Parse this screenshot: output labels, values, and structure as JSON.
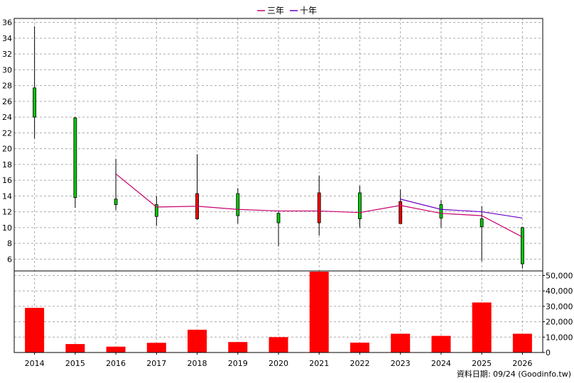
{
  "colors": {
    "up": "#00c800",
    "down": "#ff0000",
    "wick": "#000000",
    "volume": "#ff0000",
    "ma3": "#c8006e",
    "ma10": "#6e00c8",
    "grid": "#aaaaaa",
    "frame": "#000000"
  },
  "legend": [
    {
      "name": "三年",
      "color": "#c8006e"
    },
    {
      "name": "十年",
      "color": "#6e00c8"
    }
  ],
  "source_note": "資料日期: 09/24  (Goodinfo.tw)",
  "chart_data": [
    {
      "type": "candlestick",
      "title": "",
      "categories": [
        "2014",
        "2015",
        "2016",
        "2017",
        "2018",
        "2019",
        "2020",
        "2021",
        "2022",
        "2023",
        "2024",
        "2025",
        "2026"
      ],
      "ylim": [
        4.5,
        36.5
      ],
      "yticks": [
        6,
        8,
        10,
        12,
        14,
        16,
        18,
        20,
        22,
        24,
        26,
        28,
        30,
        32,
        34,
        36
      ],
      "grid": true,
      "legend_position": "top-center",
      "candles": [
        {
          "x": "2014",
          "open": 24.0,
          "close": 27.7,
          "high": 35.5,
          "low": 21.3,
          "color": "up"
        },
        {
          "x": "2015",
          "open": 13.8,
          "close": 23.9,
          "high": 24.0,
          "low": 12.5,
          "color": "up"
        },
        {
          "x": "2016",
          "open": 12.9,
          "close": 13.6,
          "high": 18.7,
          "low": 12.2,
          "color": "up"
        },
        {
          "x": "2017",
          "open": 11.4,
          "close": 12.9,
          "high": 14.0,
          "low": 10.2,
          "color": "up"
        },
        {
          "x": "2018",
          "open": 14.3,
          "close": 11.1,
          "high": 19.3,
          "low": 11.0,
          "color": "down"
        },
        {
          "x": "2019",
          "open": 11.5,
          "close": 14.3,
          "high": 15.0,
          "low": 10.5,
          "color": "up"
        },
        {
          "x": "2020",
          "open": 10.6,
          "close": 11.8,
          "high": 12.0,
          "low": 7.6,
          "color": "up"
        },
        {
          "x": "2021",
          "open": 14.4,
          "close": 10.6,
          "high": 16.6,
          "low": 9.0,
          "color": "down"
        },
        {
          "x": "2022",
          "open": 11.1,
          "close": 14.4,
          "high": 15.3,
          "low": 10.0,
          "color": "up"
        },
        {
          "x": "2023",
          "open": 13.3,
          "close": 10.5,
          "high": 14.8,
          "low": 10.5,
          "color": "down"
        },
        {
          "x": "2024",
          "open": 11.2,
          "close": 12.9,
          "high": 13.5,
          "low": 10.0,
          "color": "up"
        },
        {
          "x": "2025",
          "open": 10.1,
          "close": 11.1,
          "high": 12.7,
          "low": 5.7,
          "color": "up"
        },
        {
          "x": "2026",
          "open": 5.4,
          "close": 10.0,
          "high": 10.1,
          "low": 4.8,
          "color": "up"
        }
      ],
      "series": [
        {
          "name": "三年",
          "color": "#c8006e",
          "x": [
            "2016",
            "2017",
            "2018",
            "2019",
            "2020",
            "2021",
            "2022",
            "2023",
            "2024",
            "2025",
            "2026"
          ],
          "values": [
            16.8,
            12.6,
            12.7,
            12.3,
            12.1,
            12.1,
            11.9,
            12.8,
            11.8,
            11.5,
            8.8
          ]
        },
        {
          "name": "十年",
          "color": "#6e00c8",
          "x": [
            "2023",
            "2024",
            "2025",
            "2026"
          ],
          "values": [
            13.6,
            12.3,
            12.0,
            11.2
          ]
        }
      ]
    },
    {
      "type": "bar",
      "categories": [
        "2014",
        "2015",
        "2016",
        "2017",
        "2018",
        "2019",
        "2020",
        "2021",
        "2022",
        "2023",
        "2024",
        "2025",
        "2026"
      ],
      "values": [
        29000,
        5500,
        3800,
        6300,
        14800,
        6800,
        10000,
        52500,
        6400,
        12200,
        10800,
        32500,
        12200
      ],
      "ylim": [
        0,
        53000
      ],
      "yticks": [
        0,
        10000,
        20000,
        30000,
        40000,
        50000
      ],
      "ytick_labels": [
        "0",
        "10,000",
        "20,000",
        "30,000",
        "40,000",
        "50,000"
      ],
      "axis_side": "right",
      "grid": true
    }
  ]
}
